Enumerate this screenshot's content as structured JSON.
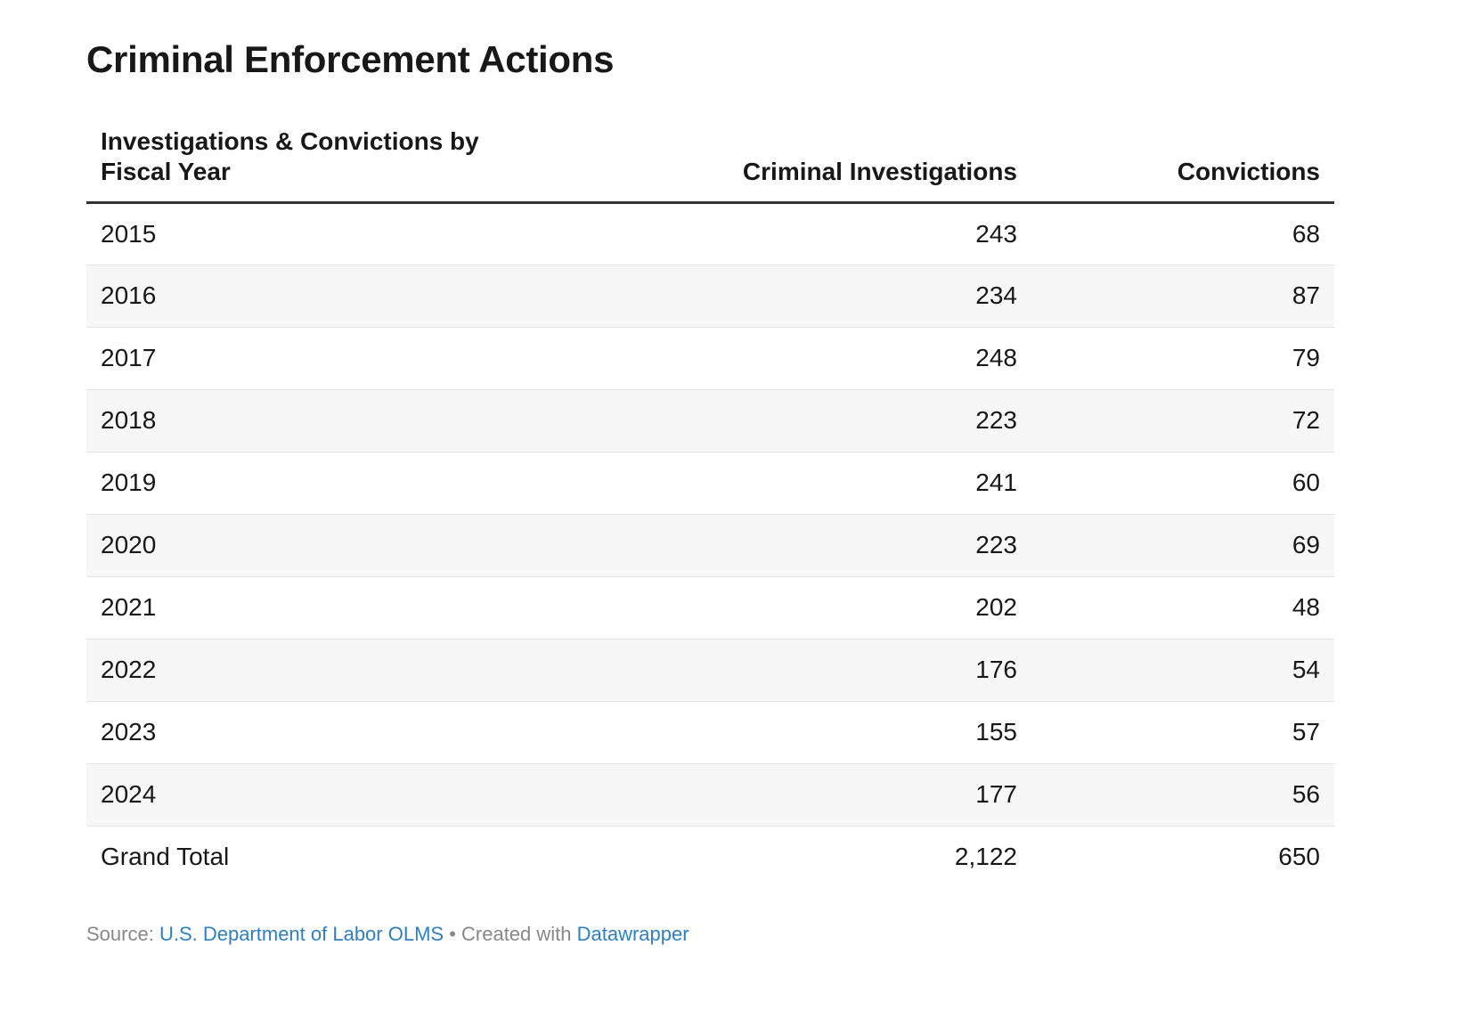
{
  "title": "Criminal Enforcement Actions",
  "colors": {
    "header_rule": "#333333",
    "row_stripe": "#f7f7f7",
    "row_divider": "#e3e3e3",
    "link": "#2f7fc1",
    "footer_text": "#888888"
  },
  "chart_data": {
    "type": "table",
    "title": "Criminal Enforcement Actions",
    "columns": [
      "Investigations & Convictions by Fiscal Year",
      "Criminal Investigations",
      "Convictions"
    ],
    "rows": [
      [
        "2015",
        "243",
        "68"
      ],
      [
        "2016",
        "234",
        "87"
      ],
      [
        "2017",
        "248",
        "79"
      ],
      [
        "2018",
        "223",
        "72"
      ],
      [
        "2019",
        "241",
        "60"
      ],
      [
        "2020",
        "223",
        "69"
      ],
      [
        "2021",
        "202",
        "48"
      ],
      [
        "2022",
        "176",
        "54"
      ],
      [
        "2023",
        "155",
        "57"
      ],
      [
        "2024",
        "177",
        "56"
      ],
      [
        "Grand Total",
        "2,122",
        "650"
      ]
    ]
  },
  "footer": {
    "source_label": "Source: ",
    "source_link": "U.S. Department of Labor OLMS",
    "separator": " • Created with ",
    "tool_link": "Datawrapper"
  }
}
